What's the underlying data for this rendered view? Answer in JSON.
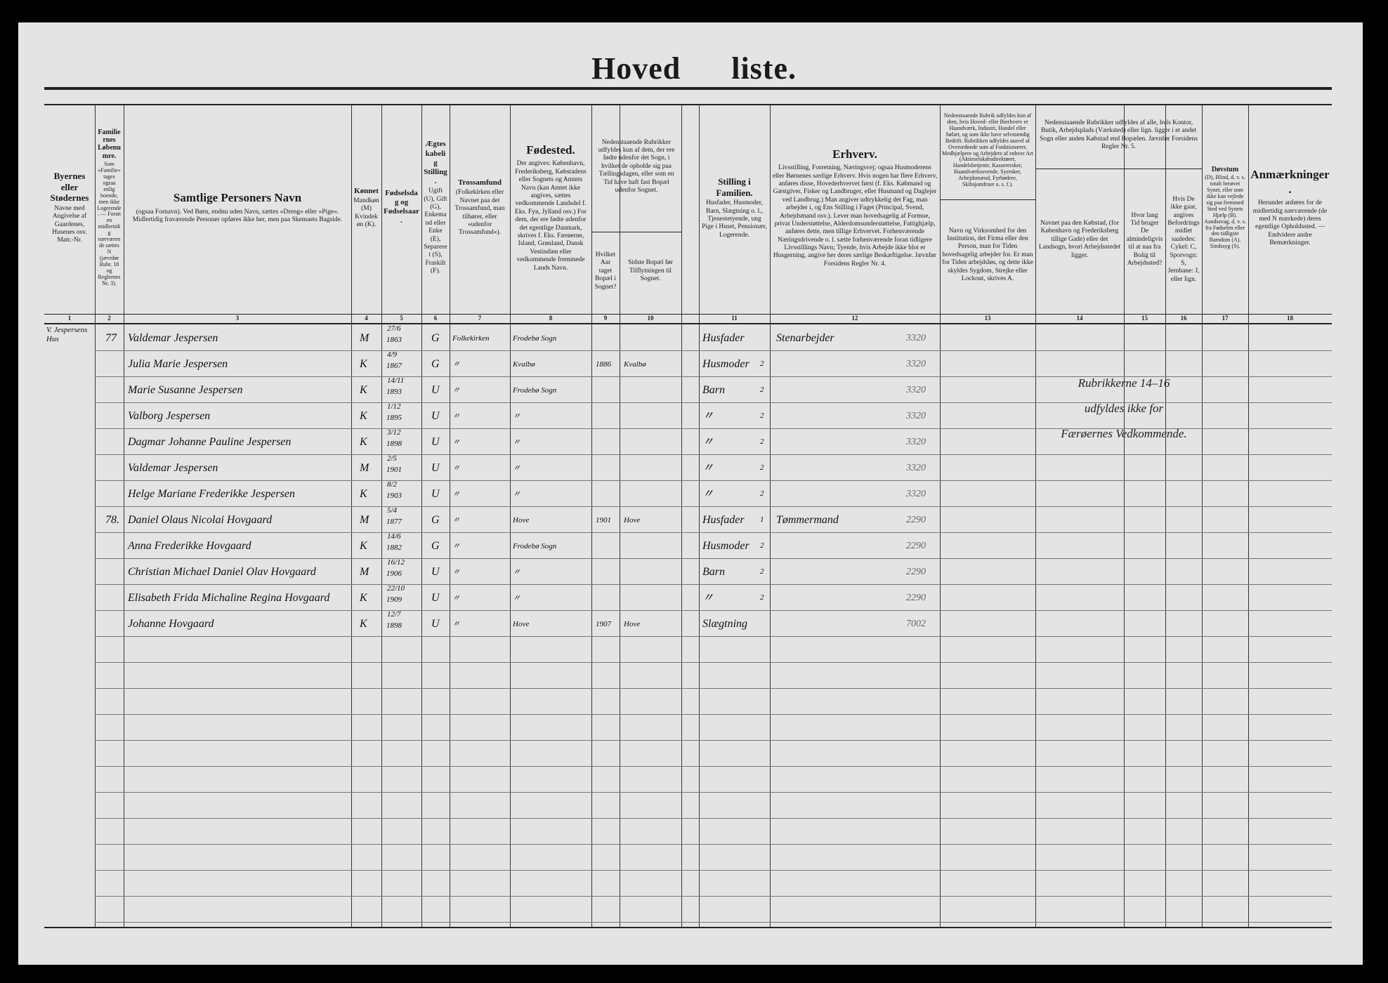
{
  "title": "Hoved liste.",
  "headers": [
    {
      "num": "1",
      "bold": "Byernes eller Stødernes",
      "text": "Navne med Angivelse af Gaardenes, Husenes osv. Matr.-Nr."
    },
    {
      "num": "2",
      "bold": "Familiernes Løbenumre.",
      "text": "Som »Familie« tages ogsaa enlig boende, men ikke Logerende. — Foran en midlertidig nærværende sættes N (jævnfør Rubr. 18 og Reglernes Nr. 3)."
    },
    {
      "num": "3",
      "big": "Samtlige Personers Navn",
      "text": "(ogsaa Fornavn). Ved Børn, endnu uden Navn, sættes »Dreng« eller »Pige«. Midlertidig fraværende Personer opføres ikke her, men paa Skemaets Bagside."
    },
    {
      "num": "4",
      "bold": "Kønnet",
      "text": "Mandkøn (M) Kvindekøn (K)."
    },
    {
      "num": "5",
      "bold": "Fødselsdag og Fødselsaar.",
      "text": ""
    },
    {
      "num": "6",
      "bold": "Ægteskabelig Stilling.",
      "text": "Ugift (U), Gift (G), Enkemand eller Enke (E), Separeret (S), Fraskilt (F)."
    },
    {
      "num": "7",
      "bold": "Trossamfund",
      "text": "(Folkekirken eller Navnet paa det Trossamfund, man tilhører, eller »udenfor Trossamfund«)."
    },
    {
      "num": "8",
      "big": "Fødested.",
      "text": "Der angives: København, Frederiksberg, Købstadens eller Sognets og Amtets Navn (kan Amtet ikke angives, sættes vedkommende Landsdel f. Eks. Fyn, Jylland osv.) For dem, der ere fødte udenfor det egentlige Danmark, skrives f. Eks. Færøerne, Island, Grønland, Dansk Vestindien eller vedkommende fremmede Lands Navn."
    },
    {
      "num": "",
      "bold": "",
      "text": "Nedenstaaende Rubrikker udfyldes kun af dem, der ere fødte udenfor det Sogn, i hvilket de opholde sig paa Tællingsdagen, eller som en Tid have haft fast Bopæl udenfor Sognet."
    },
    {
      "num": "9",
      "bold": "",
      "text": "Hvilket Aar taget Bopæl i Sognet?"
    },
    {
      "num": "10",
      "bold": "",
      "text": "Sidste Bopæl før Tilflytningen til Sognet."
    },
    {
      "num": "11",
      "bold": "Stilling i Familien.",
      "text": "Husfader, Husmoder, Barn, Slægtning o. l., Tjenestetyende, ung Pige i Huset, Pensionær, Logerende."
    },
    {
      "num": "12",
      "big": "Erhverv.",
      "text": "Livsstilling, Forretning, Næringsvej; ogsaa Husmoderens eller Børnenes særlige Erhverv. Hvis nogen har flere Erhverv, anføres disse, Hovederhvervet først (f. Eks. Købmand og Gæstgiver, Fisker og Landbruger, eller Husmand og Daglejer ved Landbrug.) Man angiver udtrykkelig det Fag, man arbejder i, og Ens Stilling i Faget (Principal, Svend, Arbejdsmand osv.). Lever man hovedsagelig af Formue, privat Understøttelse, Alderdomsunderstøttelse, Fattighjælp, anføres dette, men tillige Erhvervet. Forhenværende Næringsdrivende o. l. sætte forhenværende foran tidligere Livsstillings Navn; Tyende, hvis Arbejde ikke blot er Husgerning, angive her deres særlige Beskæftigelse. Jævnfør Forsidens Regler Nr. 4."
    },
    {
      "num": "",
      "bold": "",
      "text": "Nedenstaaende Rubrik udfyldes kun af dem, hvis Hoved- eller Bierhverv er Haandværk, Industri, Handel eller Søfart, og som ikke have selvstændig Bedrift. Rubrikken udfyldes saavel af Overordnede som af Funktionærer, Medhjælpere og Arbejdere af enhver Art (Aktieselskabsdirektører, Handelsbetjente, Kasserersker, Haandværkssvende, Syersker, Arbejdsmænd, Fyrbødere, Skibsjomfruer o. s. f.)."
    },
    {
      "num": "13",
      "bold": "",
      "text": "Navn og Virksomhed for den Institution, det Firma eller den Person, man for Tiden hovedsagelig arbejder for. Er man for Tiden arbejdsløs, og dette ikke skyldes Sygdom, Strejke eller Lockout, skrives A."
    },
    {
      "num": "",
      "bold": "",
      "text": "Nedenstaaende Rubrikker udfyldes af alle, hvis Kontor, Butik, Arbejdsplads (Værksted) eller lign. ligger i et andet Sogn eller anden Købstad end Bopælen. Jævnfør Forsidens Regler Nr. 5."
    },
    {
      "num": "14",
      "bold": "",
      "text": "Navnet paa den Købstad, (for København og Frederiksberg tillige Gade) eller det Landsogn, hvori Arbejdsstedet ligger."
    },
    {
      "num": "15",
      "bold": "",
      "text": "Hvor lang Tid bruger De almindeligvis til at naa fra Bolig til Arbejdssted?"
    },
    {
      "num": "16",
      "bold": "",
      "text": "Hvis De ikke gaar, angives Befordringsmidlet saaledes: Cykel: C, Sporvogn: S, Jernbane: J, eller lign."
    },
    {
      "num": "17",
      "bold": "Døvstum",
      "text": "(D), Blind, d. v. s. totalt berøvet Synet, eller som ikke kan vejlede sig paa fremmed Sted ved Synets Hjælp (B). Aandssvag, d. v. s. fra Fødselen eller den tidligste Barndom (A). Sindssyg (S)."
    },
    {
      "num": "18",
      "big": "Anmærkninger.",
      "text": "Herunder anføres for de midlertidig nærværende (de med N mærkede) deres egentlige Opholdssted. — Endvidere andre Bemærkninger."
    }
  ],
  "rows": [
    {
      "house": "V. Jespersens Hus",
      "family": "77",
      "name": "Valdemar Jespersen",
      "sex": "M",
      "day": "27/6",
      "year": "1863",
      "marital": "G",
      "religion": "Folkekirken",
      "birthplace": "Frodebø Sogn",
      "moved": "",
      "prev": "",
      "position": "Husfader",
      "poscode": "",
      "occupation": "Stenarbejder",
      "code": "3320"
    },
    {
      "house": "",
      "family": "",
      "name": "Julia Marie Jespersen",
      "sex": "K",
      "day": "4/9",
      "year": "1867",
      "marital": "G",
      "religion": "〃",
      "birthplace": "Kvalbø",
      "moved": "1886",
      "prev": "Kvalbø",
      "position": "Husmoder",
      "poscode": "2",
      "occupation": "",
      "code": "3320"
    },
    {
      "house": "",
      "family": "",
      "name": "Marie Susanne Jespersen",
      "sex": "K",
      "day": "14/11",
      "year": "1893",
      "marital": "U",
      "religion": "〃",
      "birthplace": "Frodebø Sogn",
      "moved": "",
      "prev": "",
      "position": "Barn",
      "poscode": "2",
      "occupation": "",
      "code": "3320"
    },
    {
      "house": "",
      "family": "",
      "name": "Valborg Jespersen",
      "sex": "K",
      "day": "1/12",
      "year": "1895",
      "marital": "U",
      "religion": "〃",
      "birthplace": "〃",
      "moved": "",
      "prev": "",
      "position": "〃",
      "poscode": "2",
      "occupation": "",
      "code": "3320"
    },
    {
      "house": "",
      "family": "",
      "name": "Dagmar Johanne Pauline Jespersen",
      "sex": "K",
      "day": "3/12",
      "year": "1898",
      "marital": "U",
      "religion": "〃",
      "birthplace": "〃",
      "moved": "",
      "prev": "",
      "position": "〃",
      "poscode": "2",
      "occupation": "",
      "code": "3320"
    },
    {
      "house": "",
      "family": "",
      "name": "Valdemar Jespersen",
      "sex": "M",
      "day": "2/5",
      "year": "1901",
      "marital": "U",
      "religion": "〃",
      "birthplace": "〃",
      "moved": "",
      "prev": "",
      "position": "〃",
      "poscode": "2",
      "occupation": "",
      "code": "3320"
    },
    {
      "house": "",
      "family": "",
      "name": "Helge Mariane Frederikke Jespersen",
      "sex": "K",
      "day": "8/2",
      "year": "1903",
      "marital": "U",
      "religion": "〃",
      "birthplace": "〃",
      "moved": "",
      "prev": "",
      "position": "〃",
      "poscode": "2",
      "occupation": "",
      "code": "3320"
    },
    {
      "house": "",
      "family": "78.",
      "name": "Daniel Olaus Nicolai Hovgaard",
      "sex": "M",
      "day": "5/4",
      "year": "1877",
      "marital": "G",
      "religion": "〃",
      "birthplace": "Hove",
      "moved": "1901",
      "prev": "Hove",
      "position": "Husfader",
      "poscode": "1",
      "occupation": "Tømmermand",
      "code": "2290"
    },
    {
      "house": "",
      "family": "",
      "name": "Anna Frederikke Hovgaard",
      "sex": "K",
      "day": "14/6",
      "year": "1882",
      "marital": "G",
      "religion": "〃",
      "birthplace": "Frodebø Sogn",
      "moved": "",
      "prev": "",
      "position": "Husmoder",
      "poscode": "2",
      "occupation": "",
      "code": "2290"
    },
    {
      "house": "",
      "family": "",
      "name": "Christian Michael Daniel Olav Hovgaard",
      "sex": "M",
      "day": "16/12",
      "year": "1906",
      "marital": "U",
      "religion": "〃",
      "birthplace": "〃",
      "moved": "",
      "prev": "",
      "position": "Barn",
      "poscode": "2",
      "occupation": "",
      "code": "2290"
    },
    {
      "house": "",
      "family": "",
      "name": "Elisabeth Frida Michaline Regina Hovgaard",
      "sex": "K",
      "day": "22/10",
      "year": "1909",
      "marital": "U",
      "religion": "〃",
      "birthplace": "〃",
      "moved": "",
      "prev": "",
      "position": "〃",
      "poscode": "2",
      "occupation": "",
      "code": "2290"
    },
    {
      "house": "",
      "family": "",
      "name": "Johanne Hovgaard",
      "sex": "K",
      "day": "12/7",
      "year": "1898",
      "marital": "U",
      "religion": "〃",
      "birthplace": "Hove",
      "moved": "1907",
      "prev": "Hove",
      "position": "Slægtning",
      "poscode": "",
      "occupation": "",
      "code": "7002"
    }
  ],
  "note_14_16": [
    "Rubrikkerne 14–16",
    "udfyldes ikke for",
    "Færøernes Vedkommende."
  ]
}
